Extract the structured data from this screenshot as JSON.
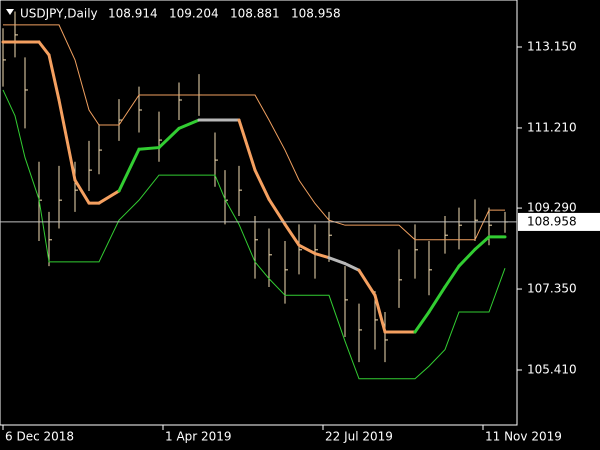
{
  "chart_data": {
    "type": "ohlc",
    "symbol": "USDJPY,Daily",
    "ohlc": [
      108.914,
      109.204,
      108.881,
      108.958
    ],
    "current_price": 108.958,
    "x": [
      0,
      6,
      11,
      18,
      23,
      28,
      36,
      43,
      48,
      58,
      68,
      78,
      88,
      98,
      106,
      111,
      118,
      126,
      133,
      141,
      148,
      156,
      163,
      171,
      178,
      186,
      191,
      198,
      206,
      213,
      221,
      228,
      236,
      243,
      251
    ],
    "high": [
      113.6,
      114.0,
      112.9,
      110.4,
      109.2,
      110.3,
      110.4,
      110.9,
      111.3,
      111.9,
      112.2,
      111.6,
      112.3,
      112.5,
      111.1,
      110.2,
      110.3,
      109.1,
      108.8,
      108.5,
      108.9,
      108.9,
      109.2,
      107.9,
      107.0,
      107.3,
      106.8,
      108.3,
      108.9,
      108.5,
      109.1,
      109.3,
      109.5,
      109.3,
      109.2
    ],
    "low": [
      112.2,
      112.9,
      111.2,
      108.5,
      107.9,
      108.8,
      109.2,
      109.7,
      110.1,
      110.9,
      111.1,
      110.4,
      111.4,
      111.5,
      109.8,
      108.9,
      109.1,
      107.6,
      107.4,
      107.0,
      107.7,
      107.6,
      108.0,
      106.2,
      105.6,
      105.9,
      105.6,
      106.9,
      107.6,
      107.2,
      108.2,
      108.3,
      108.5,
      108.4,
      108.7
    ],
    "close": [
      112.84,
      113.44,
      112.12,
      109.48,
      108.53,
      109.48,
      109.72,
      110.2,
      110.68,
      111.4,
      111.64,
      110.92,
      111.88,
      112.0,
      110.44,
      109.48,
      109.72,
      108.53,
      108.17,
      107.81,
      108.29,
      108.29,
      108.64,
      107.09,
      106.37,
      106.61,
      106.13,
      107.57,
      108.29,
      107.81,
      108.64,
      108.88,
      109.0,
      108.88,
      108.958
    ],
    "bar_color": "#f5deb3",
    "upper": {
      "color": "#f0a060",
      "values": [
        113.68,
        113.68,
        113.68,
        113.68,
        113.68,
        113.68,
        112.84,
        111.64,
        111.28,
        111.28,
        112.0,
        112.0,
        112.0,
        112.0,
        112.0,
        112.0,
        112.0,
        112.0,
        111.4,
        110.68,
        109.96,
        109.4,
        109.0,
        108.88,
        108.88,
        108.88,
        108.88,
        108.88,
        108.53,
        108.53,
        108.53,
        108.53,
        108.53,
        109.24,
        109.24
      ]
    },
    "middle": {
      "values": [
        113.27,
        113.27,
        113.27,
        113.27,
        112.96,
        111.88,
        109.96,
        109.41,
        109.41,
        109.7,
        110.7,
        110.74,
        111.2,
        111.4,
        111.4,
        111.4,
        111.4,
        110.2,
        109.5,
        108.9,
        108.4,
        108.2,
        108.1,
        107.96,
        107.8,
        107.2,
        106.32,
        106.32,
        106.32,
        106.8,
        107.4,
        107.9,
        108.3,
        108.6,
        108.6
      ],
      "segment_colors": [
        "#f5a060",
        "#f5a060",
        "#f5a060",
        "#f5a060",
        "#f5a060",
        "#f5a060",
        "#f5a060",
        "#f5a060",
        "#f5a060",
        "#32cd32",
        "#32cd32",
        "#32cd32",
        "#32cd32",
        "#b8b8b8",
        "#b8b8b8",
        "#b8b8b8",
        "#f5a060",
        "#f5a060",
        "#f5a060",
        "#f5a060",
        "#f5a060",
        "#f5a060",
        "#b8b8b8",
        "#b8b8b8",
        "#f5a060",
        "#f5a060",
        "#f5a060",
        "#f5a060",
        "#32cd32",
        "#32cd32",
        "#32cd32",
        "#32cd32",
        "#32cd32",
        "#32cd32",
        "#32cd32"
      ]
    },
    "lower": {
      "color": "#32cd32",
      "values": [
        112.12,
        111.5,
        110.5,
        109.5,
        108.0,
        108.0,
        108.0,
        108.0,
        108.0,
        109.0,
        109.48,
        110.08,
        110.08,
        110.08,
        110.08,
        109.5,
        108.9,
        108.0,
        107.6,
        107.2,
        107.2,
        107.2,
        107.2,
        106.1,
        105.2,
        105.2,
        105.2,
        105.2,
        105.2,
        105.5,
        105.9,
        106.8,
        106.8,
        106.8,
        107.85
      ]
    },
    "xlim": [
      -1.5,
      257
    ],
    "ylim": [
      104.092,
      114.276
    ],
    "yticks": [
      {
        "value": 113.15,
        "label": "113.150"
      },
      {
        "value": 111.21,
        "label": "111.210"
      },
      {
        "value": 109.29,
        "label": "109.290"
      },
      {
        "value": 107.35,
        "label": "107.350"
      },
      {
        "value": 105.41,
        "label": "105.410"
      }
    ],
    "xticks": [
      {
        "value": 0,
        "label": "6 Dec 2018"
      },
      {
        "value": 80,
        "label": "1 Apr 2019"
      },
      {
        "value": 160,
        "label": "22 Jul 2019"
      },
      {
        "value": 240,
        "label": "11 Nov 2019"
      }
    ]
  }
}
